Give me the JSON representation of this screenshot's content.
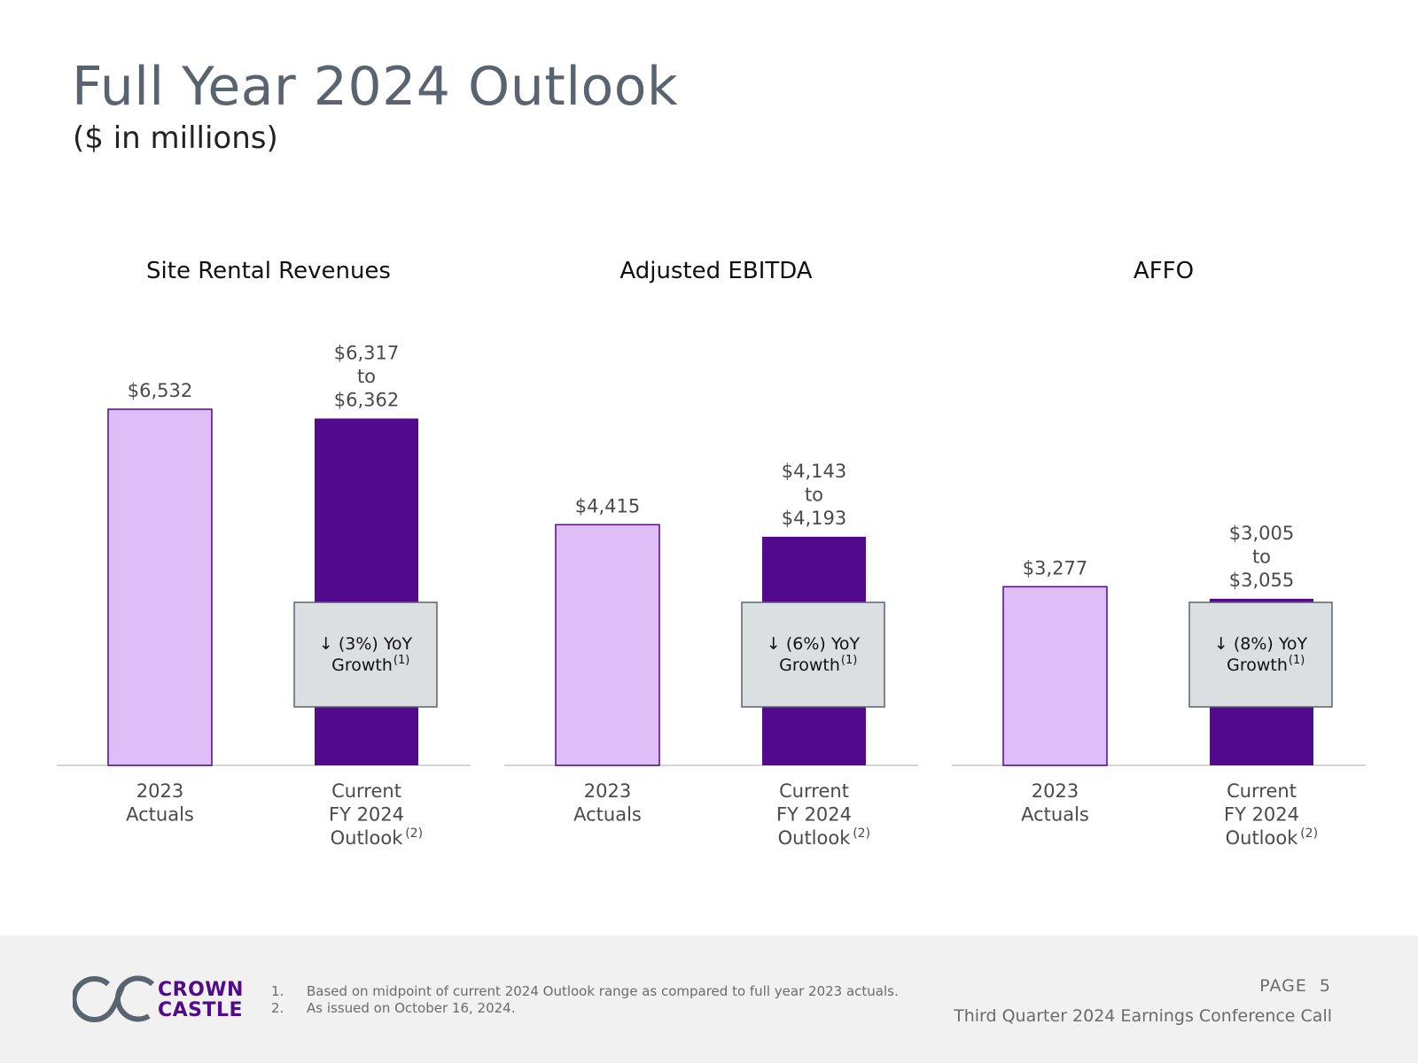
{
  "header": {
    "title": "Full Year 2024 Outlook",
    "subtitle": "($ in millions)"
  },
  "colors": {
    "actual_fill": "#dfbef8",
    "actual_stroke": "#52098e",
    "outlook_fill": "#52098e",
    "callout_fill": "#dcdfe1",
    "callout_stroke": "#5a6470",
    "axis": "#d5d5d5",
    "text": "#4a4a4a"
  },
  "chart_data": [
    {
      "type": "bar",
      "title": "Site Rental Revenues",
      "categories": [
        [
          "2023",
          "Actuals"
        ],
        [
          "Current",
          "FY 2024",
          "Outlook"
        ]
      ],
      "category_superscripts": [
        "",
        "(2)"
      ],
      "values": [
        6532,
        6362
      ],
      "outlook_range": [
        6317,
        6362
      ],
      "value_labels": [
        [
          "$6,532"
        ],
        [
          "$6,317",
          "to",
          "$6,362"
        ]
      ],
      "callout": {
        "line1": "↓ (3%) YoY",
        "line2": "Growth",
        "sup": "(1)"
      },
      "ylim": [
        0,
        6532
      ]
    },
    {
      "type": "bar",
      "title": "Adjusted EBITDA",
      "categories": [
        [
          "2023",
          "Actuals"
        ],
        [
          "Current",
          "FY 2024",
          "Outlook"
        ]
      ],
      "category_superscripts": [
        "",
        "(2)"
      ],
      "values": [
        4415,
        4193
      ],
      "outlook_range": [
        4143,
        4193
      ],
      "value_labels": [
        [
          "$4,415"
        ],
        [
          "$4,143",
          "to",
          "$4,193"
        ]
      ],
      "callout": {
        "line1": "↓ (6%) YoY",
        "line2": "Growth",
        "sup": "(1)"
      },
      "ylim": [
        0,
        6532
      ]
    },
    {
      "type": "bar",
      "title": "AFFO",
      "categories": [
        [
          "2023",
          "Actuals"
        ],
        [
          "Current",
          "FY 2024",
          "Outlook"
        ]
      ],
      "category_superscripts": [
        "",
        "(2)"
      ],
      "values": [
        3277,
        3055
      ],
      "outlook_range": [
        3005,
        3055
      ],
      "value_labels": [
        [
          "$3,277"
        ],
        [
          "$3,005",
          "to",
          "$3,055"
        ]
      ],
      "callout": {
        "line1": "↓ (8%) YoY",
        "line2": "Growth",
        "sup": "(1)"
      },
      "ylim": [
        0,
        6532
      ]
    }
  ],
  "footer": {
    "logo_line1": "CROWN",
    "logo_line2": "CASTLE",
    "footnotes": [
      {
        "num": "1.",
        "text": "Based on midpoint of current 2024 Outlook range as compared to full year 2023 actuals."
      },
      {
        "num": "2.",
        "text": "As issued on October 16, 2024."
      }
    ],
    "page_label": "PAGE",
    "page_number": "5",
    "event": "Third Quarter 2024 Earnings Conference Call"
  }
}
